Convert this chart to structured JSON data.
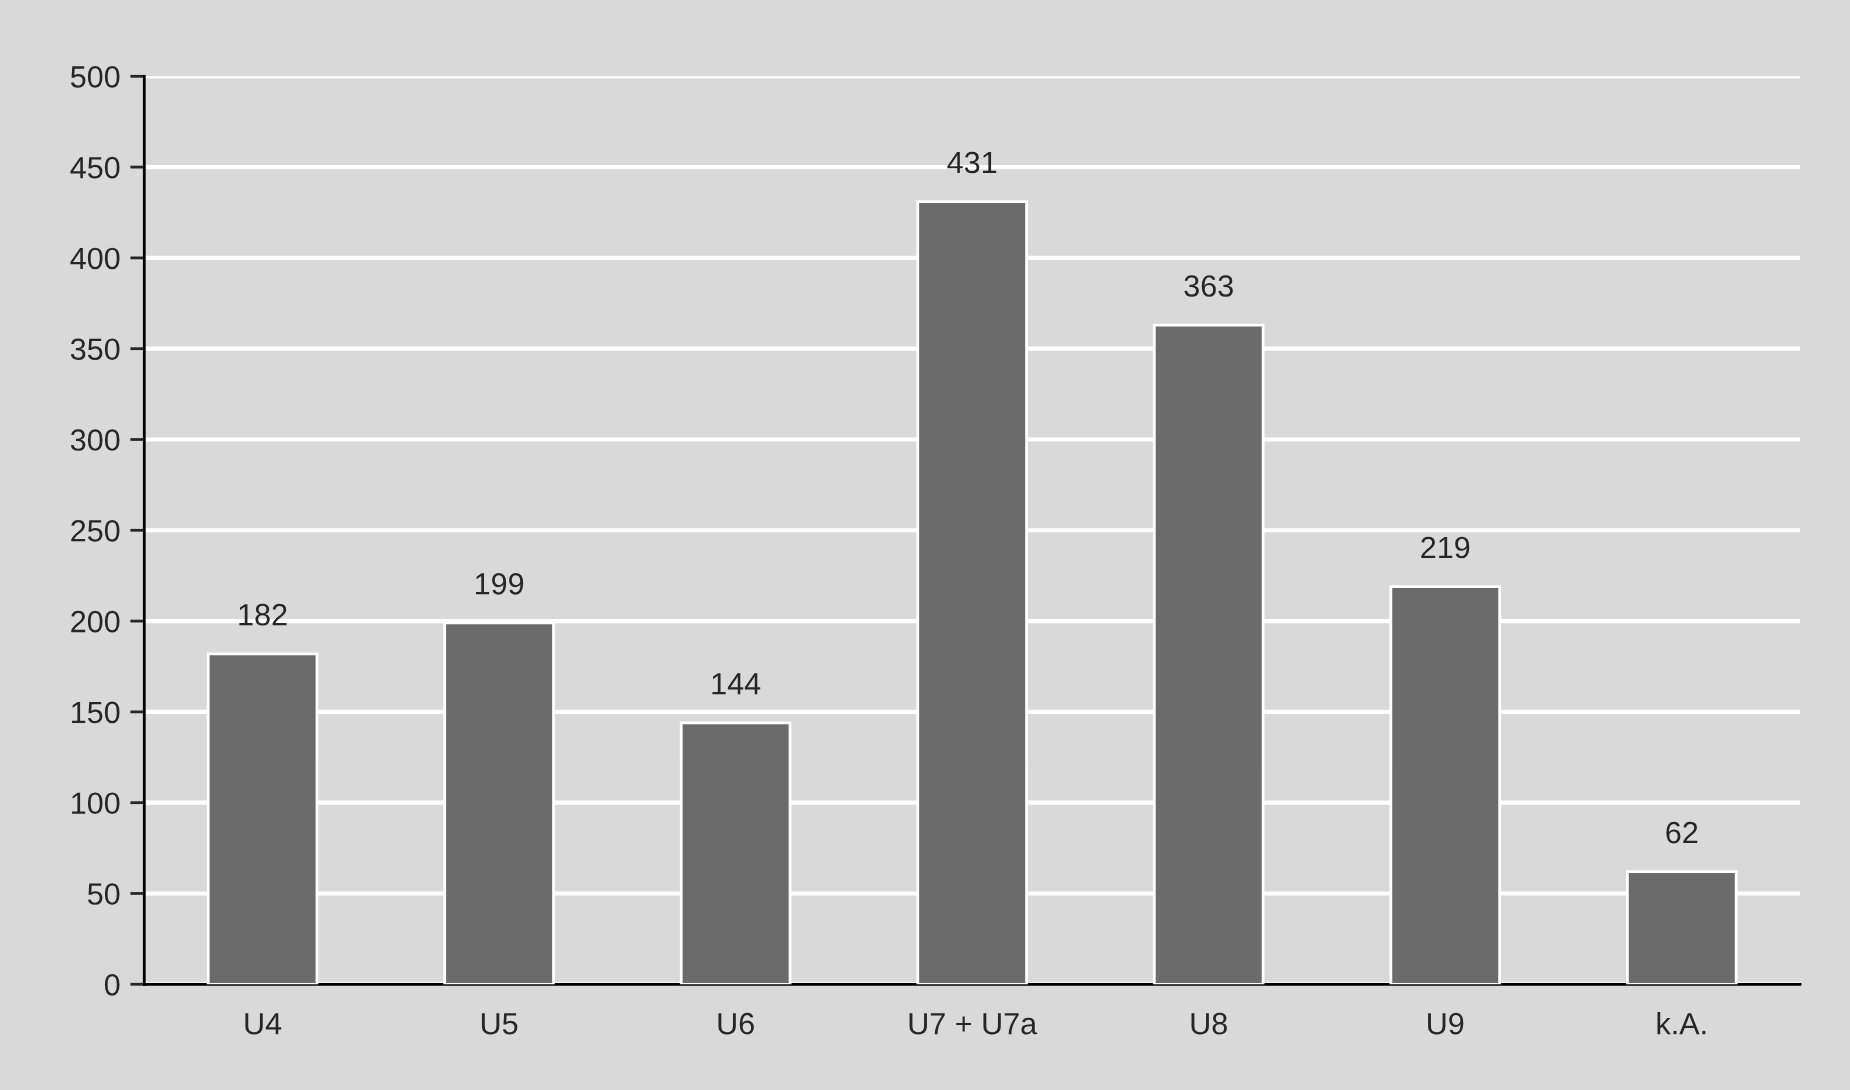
{
  "chart_data": {
    "type": "bar",
    "categories": [
      "U4",
      "U5",
      "U6",
      "U7 + U7a",
      "U8",
      "U9",
      "k.A."
    ],
    "values": [
      182,
      199,
      144,
      431,
      363,
      219,
      62
    ],
    "color": "#6b6b6b",
    "ylim": [
      0,
      500
    ],
    "yticks": [
      0,
      50,
      100,
      150,
      200,
      250,
      300,
      350,
      400,
      450,
      500
    ],
    "grid": "y",
    "data_labels": true
  }
}
